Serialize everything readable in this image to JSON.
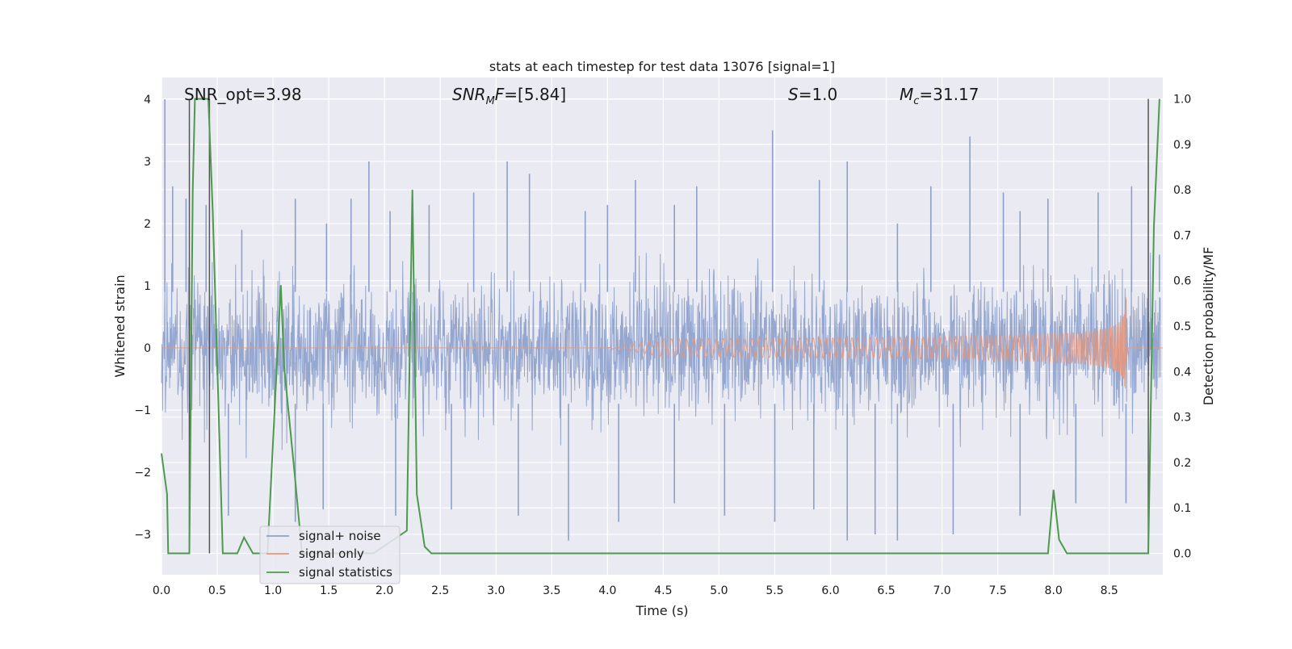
{
  "chart_data": {
    "type": "line",
    "title": "stats at each timestep for test data 13076 [signal=1]",
    "xlabel": "Time (s)",
    "ylabel": "Whitened strain",
    "y2label": "Detection probability/MF",
    "xlim": [
      0.0,
      8.98
    ],
    "ylim": [
      -3.65,
      4.35
    ],
    "y2lim": [
      -0.047,
      1.047
    ],
    "x_ticks": [
      0.0,
      0.5,
      1.0,
      1.5,
      2.0,
      2.5,
      3.0,
      3.5,
      4.0,
      4.5,
      5.0,
      5.5,
      6.0,
      6.5,
      7.0,
      7.5,
      8.0,
      8.5
    ],
    "x_tick_labels": [
      "0.0",
      "0.5",
      "1.0",
      "1.5",
      "2.0",
      "2.5",
      "3.0",
      "3.5",
      "4.0",
      "4.5",
      "5.0",
      "5.5",
      "6.0",
      "6.5",
      "7.0",
      "7.5",
      "8.0",
      "8.5"
    ],
    "y_ticks": [
      4,
      3,
      2,
      1,
      0,
      -1,
      -2,
      -3
    ],
    "y_tick_labels": [
      "4",
      "3",
      "2",
      "1",
      "0",
      "−1",
      "−2",
      "−3"
    ],
    "y2_ticks": [
      1.0,
      0.9,
      0.8,
      0.7,
      0.6,
      0.5,
      0.4,
      0.3,
      0.2,
      0.1,
      0.0
    ],
    "y2_tick_labels": [
      "1.0",
      "0.9",
      "0.8",
      "0.7",
      "0.6",
      "0.5",
      "0.4",
      "0.3",
      "0.2",
      "0.1",
      "0.0"
    ],
    "annotations": {
      "snr_opt": "SNR_opt=3.98",
      "snr_mf": {
        "sym": "SNR",
        "sub": "M",
        "sym2": "F",
        "val": "=[5.84]"
      },
      "s": {
        "sym": "S",
        "val": "=1.0"
      },
      "mc": {
        "sym": "M",
        "sub": "c",
        "val": "=31.17"
      }
    },
    "vertical_markers": [
      0.25,
      0.43,
      8.85
    ],
    "noise_band": {
      "core_amplitude": 1.85,
      "spike_peaks": [
        [
          0.03,
          4.0
        ],
        [
          0.1,
          2.6
        ],
        [
          0.22,
          2.4
        ],
        [
          0.4,
          2.3
        ],
        [
          0.72,
          1.9
        ],
        [
          1.2,
          2.4
        ],
        [
          1.48,
          2.0
        ],
        [
          1.7,
          2.4
        ],
        [
          1.86,
          3.0
        ],
        [
          2.05,
          2.2
        ],
        [
          2.4,
          2.3
        ],
        [
          2.8,
          2.5
        ],
        [
          3.1,
          3.0
        ],
        [
          3.3,
          2.8
        ],
        [
          3.8,
          2.2
        ],
        [
          4.0,
          2.3
        ],
        [
          4.25,
          2.7
        ],
        [
          4.6,
          2.3
        ],
        [
          4.8,
          2.6
        ],
        [
          5.48,
          3.5
        ],
        [
          5.9,
          2.7
        ],
        [
          6.15,
          3.0
        ],
        [
          6.6,
          2.0
        ],
        [
          6.9,
          2.6
        ],
        [
          7.25,
          3.4
        ],
        [
          7.55,
          2.5
        ],
        [
          7.7,
          2.2
        ],
        [
          7.95,
          2.4
        ],
        [
          8.4,
          2.5
        ],
        [
          8.7,
          2.6
        ],
        [
          8.95,
          1.5
        ]
      ],
      "trough_peaks": [
        [
          0.25,
          -2.9
        ],
        [
          0.6,
          -2.7
        ],
        [
          1.2,
          -2.8
        ],
        [
          1.45,
          -2.6
        ],
        [
          2.1,
          -2.7
        ],
        [
          2.6,
          -2.6
        ],
        [
          3.2,
          -2.7
        ],
        [
          3.65,
          -3.1
        ],
        [
          4.1,
          -2.8
        ],
        [
          4.6,
          -2.5
        ],
        [
          5.05,
          -2.7
        ],
        [
          5.5,
          -2.8
        ],
        [
          5.85,
          -2.6
        ],
        [
          6.15,
          -3.1
        ],
        [
          6.4,
          -3.0
        ],
        [
          6.6,
          -3.1
        ],
        [
          7.1,
          -3.0
        ],
        [
          7.7,
          -2.7
        ],
        [
          8.2,
          -2.5
        ],
        [
          8.65,
          -2.5
        ]
      ]
    },
    "series": [
      {
        "name": "signal+ noise",
        "color": "#8da0cb"
      },
      {
        "name": "signal only",
        "color": "#e8967a",
        "chirp": {
          "start": 4.0,
          "merger": 8.65,
          "peak_amplitude": 0.82
        }
      },
      {
        "name": "signal statistics",
        "color": "#4c9a4c",
        "x": [
          0.0,
          0.05,
          0.06,
          0.25,
          0.28,
          0.3,
          0.42,
          0.46,
          0.55,
          0.68,
          0.74,
          0.82,
          0.95,
          1.07,
          1.1,
          1.2,
          1.26,
          1.6,
          1.9,
          2.2,
          2.25,
          2.29,
          2.36,
          2.42,
          2.5,
          7.95,
          8.0,
          8.05,
          8.12,
          8.2,
          8.85,
          8.9,
          8.95
        ],
        "y": [
          0.22,
          0.13,
          0.0,
          0.0,
          0.8,
          1.0,
          1.0,
          0.75,
          0.0,
          0.0,
          0.035,
          0.0,
          0.0,
          0.59,
          0.41,
          0.16,
          0.0,
          0.0,
          0.0,
          0.05,
          0.8,
          0.13,
          0.015,
          0.0,
          0.0,
          0.0,
          0.14,
          0.03,
          0.0,
          0.0,
          0.0,
          0.72,
          1.0
        ]
      }
    ],
    "legend_position": "lower-left"
  }
}
